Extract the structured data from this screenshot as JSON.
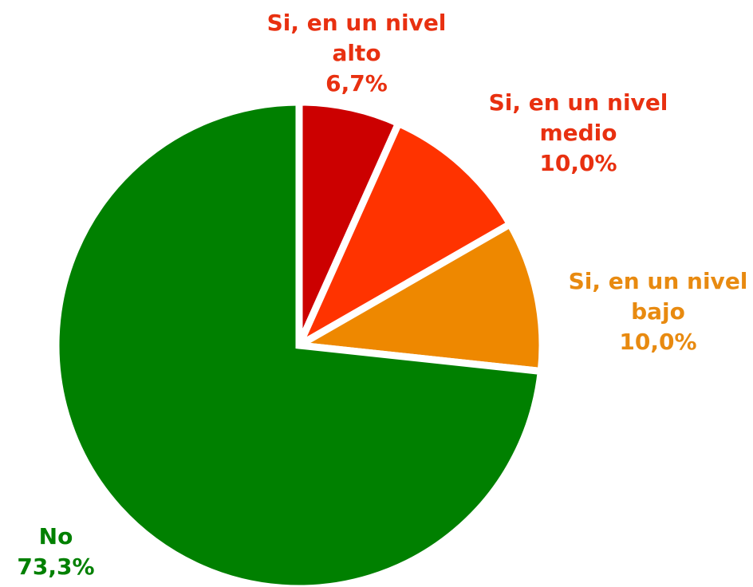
{
  "chart_data": {
    "type": "pie",
    "categories": [
      "Si, en un nivel alto",
      "Si, en un nivel medio",
      "Si, en un nivel bajo",
      "No"
    ],
    "values": [
      6.7,
      10.0,
      10.0,
      73.3
    ],
    "value_labels": [
      "6,7%",
      "10,0%",
      "10,0%",
      "73,3%"
    ],
    "colors": [
      "#cc0000",
      "#ff3300",
      "#ee8800",
      "#008000"
    ],
    "label_colors": [
      "#e83010",
      "#e83010",
      "#e88a10",
      "#008000"
    ]
  }
}
